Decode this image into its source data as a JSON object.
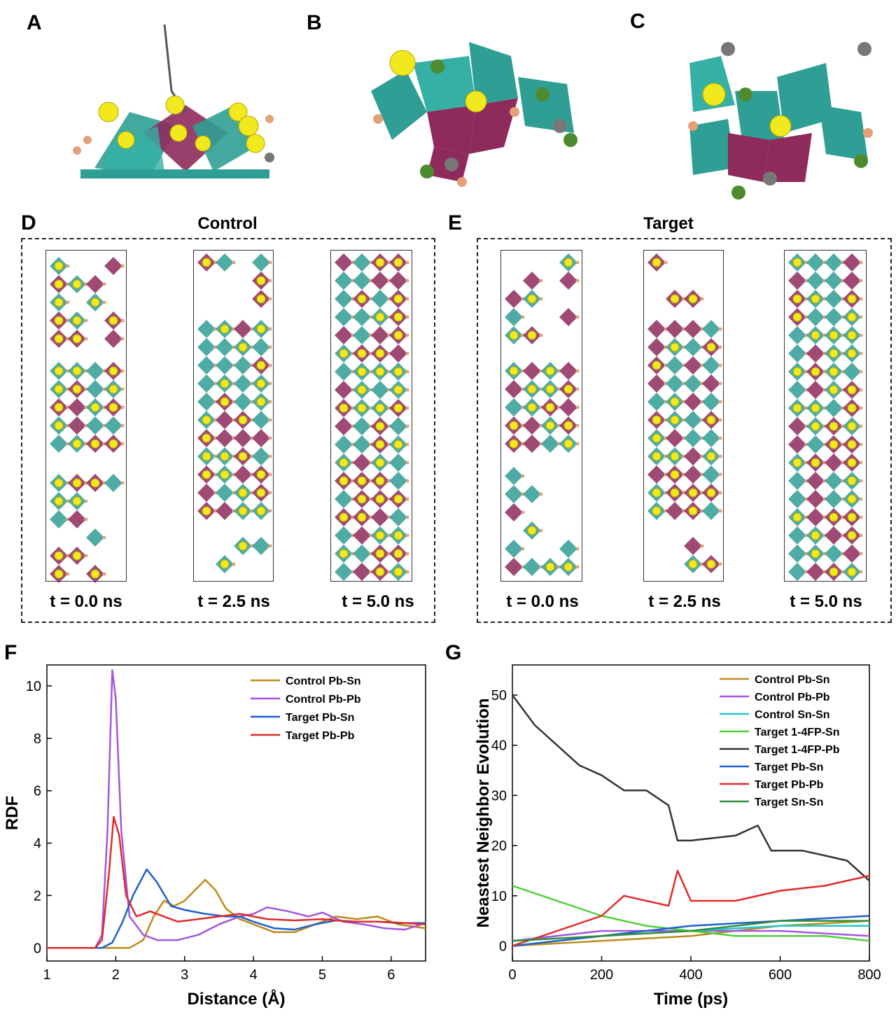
{
  "panels": {
    "A": "A",
    "B": "B",
    "C": "C",
    "D": "D",
    "E": "E",
    "F": "F",
    "G": "G"
  },
  "control_title": "Control",
  "target_title": "Target",
  "time_labels": [
    "t = 0.0 ns",
    "t = 2.5 ns",
    "t = 5.0 ns"
  ],
  "colors": {
    "teal": "#2f9e94",
    "magenta": "#8e2a5c",
    "yellow": "#f2e81e",
    "orange": "#e3a17a",
    "grey": "#777777",
    "green": "#4e8a2e"
  },
  "chart_data": [
    {
      "type": "line",
      "id": "F",
      "xlabel": "Distance (Å)",
      "ylabel": "RDF",
      "xlim": [
        1,
        6.5
      ],
      "ylim": [
        -0.5,
        10.8
      ],
      "xticks": [
        "1",
        "2",
        "3",
        "4",
        "5",
        "6"
      ],
      "yticks": [
        "0",
        "2",
        "4",
        "6",
        "8",
        "10"
      ],
      "legend_position": "top-right",
      "series": [
        {
          "name": "Control Pb-Sn",
          "color": "#c08a17",
          "points": [
            [
              1,
              0
            ],
            [
              2.2,
              0
            ],
            [
              2.4,
              0.3
            ],
            [
              2.55,
              1.2
            ],
            [
              2.7,
              1.8
            ],
            [
              2.85,
              1.6
            ],
            [
              3.0,
              1.8
            ],
            [
              3.15,
              2.2
            ],
            [
              3.3,
              2.6
            ],
            [
              3.45,
              2.2
            ],
            [
              3.6,
              1.5
            ],
            [
              3.8,
              1.1
            ],
            [
              4.0,
              0.9
            ],
            [
              4.3,
              0.6
            ],
            [
              4.6,
              0.6
            ],
            [
              4.9,
              0.9
            ],
            [
              5.2,
              1.2
            ],
            [
              5.5,
              1.1
            ],
            [
              5.8,
              1.2
            ],
            [
              6.1,
              0.9
            ],
            [
              6.5,
              0.75
            ]
          ]
        },
        {
          "name": "Control Pb-Pb",
          "color": "#a455e0",
          "points": [
            [
              1,
              0
            ],
            [
              1.7,
              0
            ],
            [
              1.8,
              0.5
            ],
            [
              1.88,
              4.5
            ],
            [
              1.95,
              10.6
            ],
            [
              2.0,
              9.5
            ],
            [
              2.08,
              4.5
            ],
            [
              2.2,
              1.2
            ],
            [
              2.4,
              0.5
            ],
            [
              2.6,
              0.3
            ],
            [
              2.9,
              0.3
            ],
            [
              3.2,
              0.5
            ],
            [
              3.5,
              0.9
            ],
            [
              3.8,
              1.2
            ],
            [
              4.0,
              1.3
            ],
            [
              4.2,
              1.55
            ],
            [
              4.5,
              1.4
            ],
            [
              4.8,
              1.2
            ],
            [
              5.0,
              1.35
            ],
            [
              5.3,
              1.0
            ],
            [
              5.6,
              0.9
            ],
            [
              5.9,
              0.75
            ],
            [
              6.2,
              0.7
            ],
            [
              6.5,
              0.95
            ]
          ]
        },
        {
          "name": "Target Pb-Sn",
          "color": "#1f5fd0",
          "points": [
            [
              1,
              0
            ],
            [
              1.8,
              0
            ],
            [
              1.95,
              0.2
            ],
            [
              2.1,
              1.0
            ],
            [
              2.25,
              2.0
            ],
            [
              2.45,
              3.0
            ],
            [
              2.6,
              2.5
            ],
            [
              2.8,
              1.6
            ],
            [
              3.0,
              1.45
            ],
            [
              3.3,
              1.3
            ],
            [
              3.6,
              1.2
            ],
            [
              3.8,
              1.2
            ],
            [
              4.0,
              1.0
            ],
            [
              4.3,
              0.75
            ],
            [
              4.6,
              0.7
            ],
            [
              4.9,
              0.9
            ],
            [
              5.2,
              1.05
            ],
            [
              5.5,
              1.0
            ],
            [
              5.8,
              1.0
            ],
            [
              6.1,
              0.95
            ],
            [
              6.5,
              0.95
            ]
          ]
        },
        {
          "name": "Target Pb-Pb",
          "color": "#e02a2a",
          "points": [
            [
              1,
              0
            ],
            [
              1.7,
              0
            ],
            [
              1.8,
              0.3
            ],
            [
              1.9,
              2.8
            ],
            [
              1.97,
              5.0
            ],
            [
              2.05,
              4.3
            ],
            [
              2.15,
              2.0
            ],
            [
              2.3,
              1.2
            ],
            [
              2.5,
              1.4
            ],
            [
              2.7,
              1.2
            ],
            [
              2.9,
              1.0
            ],
            [
              3.2,
              1.1
            ],
            [
              3.5,
              1.2
            ],
            [
              3.8,
              1.3
            ],
            [
              4.2,
              1.1
            ],
            [
              4.6,
              1.05
            ],
            [
              5.0,
              1.1
            ],
            [
              5.4,
              1.0
            ],
            [
              5.8,
              1.0
            ],
            [
              6.2,
              0.95
            ],
            [
              6.5,
              0.9
            ]
          ]
        }
      ]
    },
    {
      "type": "line",
      "id": "G",
      "xlabel": "Time (ps)",
      "ylabel": "Neastest Neighbor Evolution",
      "xlim": [
        0,
        800
      ],
      "ylim": [
        -3,
        56
      ],
      "xticks": [
        "0",
        "200",
        "400",
        "600",
        "800"
      ],
      "yticks": [
        "0",
        "10",
        "20",
        "30",
        "40",
        "50"
      ],
      "legend_position": "top-right",
      "series": [
        {
          "name": "Control Pb-Sn",
          "color": "#c08a17",
          "points": [
            [
              0,
              0
            ],
            [
              200,
              1
            ],
            [
              400,
              2
            ],
            [
              600,
              4
            ],
            [
              800,
              5
            ]
          ]
        },
        {
          "name": "Control Pb-Pb",
          "color": "#a455e0",
          "points": [
            [
              0,
              1
            ],
            [
              200,
              3
            ],
            [
              400,
              3
            ],
            [
              600,
              3
            ],
            [
              800,
              2
            ]
          ]
        },
        {
          "name": "Control Sn-Sn",
          "color": "#22c7cf",
          "points": [
            [
              0,
              0
            ],
            [
              200,
              2
            ],
            [
              400,
              3
            ],
            [
              600,
              4
            ],
            [
              800,
              4
            ]
          ]
        },
        {
          "name": "Target 1-4FP-Sn",
          "color": "#4fcf3a",
          "points": [
            [
              0,
              12
            ],
            [
              100,
              9
            ],
            [
              200,
              6
            ],
            [
              300,
              4
            ],
            [
              400,
              3
            ],
            [
              500,
              2
            ],
            [
              600,
              2
            ],
            [
              700,
              2
            ],
            [
              800,
              1
            ]
          ]
        },
        {
          "name": "Target 1-4FP-Pb",
          "color": "#333333",
          "points": [
            [
              0,
              50
            ],
            [
              50,
              44
            ],
            [
              100,
              40
            ],
            [
              150,
              36
            ],
            [
              200,
              34
            ],
            [
              250,
              31
            ],
            [
              300,
              31
            ],
            [
              350,
              28
            ],
            [
              370,
              21
            ],
            [
              400,
              21
            ],
            [
              500,
              22
            ],
            [
              550,
              24
            ],
            [
              580,
              19
            ],
            [
              650,
              19
            ],
            [
              700,
              18
            ],
            [
              750,
              17
            ],
            [
              800,
              13
            ]
          ]
        },
        {
          "name": "Target Pb-Sn",
          "color": "#1f5fd0",
          "points": [
            [
              0,
              0
            ],
            [
              200,
              2
            ],
            [
              400,
              4
            ],
            [
              600,
              5
            ],
            [
              800,
              6
            ]
          ]
        },
        {
          "name": "Target Pb-Pb",
          "color": "#e02a2a",
          "points": [
            [
              0,
              0
            ],
            [
              100,
              3
            ],
            [
              200,
              6
            ],
            [
              250,
              10
            ],
            [
              350,
              8
            ],
            [
              370,
              15
            ],
            [
              400,
              9
            ],
            [
              500,
              9
            ],
            [
              600,
              11
            ],
            [
              700,
              12
            ],
            [
              800,
              14
            ]
          ]
        },
        {
          "name": "Target Sn-Sn",
          "color": "#2e8f3a",
          "points": [
            [
              0,
              1
            ],
            [
              200,
              2
            ],
            [
              400,
              3
            ],
            [
              600,
              5
            ],
            [
              800,
              5
            ]
          ]
        }
      ]
    }
  ]
}
